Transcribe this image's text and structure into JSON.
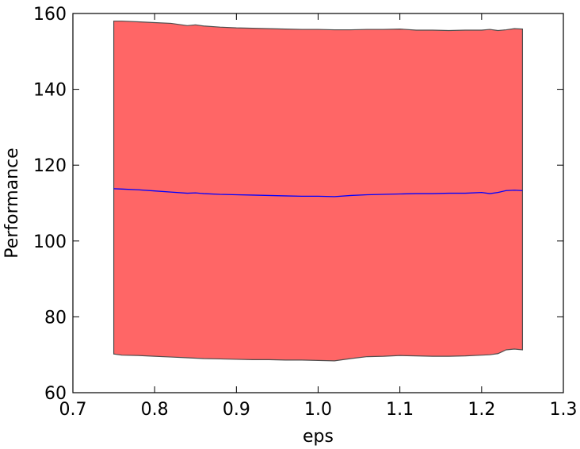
{
  "chart_data": {
    "type": "area",
    "xlabel": "eps",
    "ylabel": "Performance",
    "xlim": [
      0.7,
      1.3
    ],
    "ylim": [
      60,
      160
    ],
    "xticks": [
      "0.7",
      "0.8",
      "0.9",
      "1.0",
      "1.1",
      "1.2",
      "1.3"
    ],
    "yticks": [
      "60",
      "80",
      "100",
      "120",
      "140",
      "160"
    ],
    "grid": false,
    "legend": "none",
    "band_color": "#ff6666",
    "band_edge_color": "#4d4d4d",
    "line_color": "#0000ff",
    "x": [
      0.75,
      0.76,
      0.78,
      0.8,
      0.82,
      0.84,
      0.85,
      0.86,
      0.88,
      0.9,
      0.92,
      0.94,
      0.96,
      0.98,
      1.0,
      1.02,
      1.04,
      1.06,
      1.08,
      1.1,
      1.12,
      1.14,
      1.16,
      1.18,
      1.2,
      1.21,
      1.22,
      1.23,
      1.24,
      1.25
    ],
    "series": [
      {
        "role": "upper",
        "values": [
          158.0,
          158.0,
          157.8,
          157.6,
          157.4,
          156.8,
          157.0,
          156.7,
          156.4,
          156.2,
          156.1,
          156.0,
          155.9,
          155.8,
          155.8,
          155.7,
          155.7,
          155.8,
          155.8,
          155.9,
          155.6,
          155.6,
          155.5,
          155.6,
          155.6,
          155.8,
          155.5,
          155.7,
          156.0,
          155.9
        ]
      },
      {
        "role": "mean",
        "values": [
          113.8,
          113.7,
          113.5,
          113.2,
          112.9,
          112.6,
          112.7,
          112.5,
          112.3,
          112.2,
          112.1,
          112.0,
          111.9,
          111.8,
          111.8,
          111.7,
          112.0,
          112.2,
          112.3,
          112.4,
          112.5,
          112.5,
          112.6,
          112.6,
          112.8,
          112.5,
          112.8,
          113.3,
          113.4,
          113.3
        ]
      },
      {
        "role": "lower",
        "values": [
          70.2,
          69.9,
          69.8,
          69.6,
          69.4,
          69.2,
          69.1,
          69.0,
          68.9,
          68.8,
          68.7,
          68.7,
          68.6,
          68.6,
          68.5,
          68.4,
          69.0,
          69.5,
          69.6,
          69.8,
          69.7,
          69.6,
          69.6,
          69.7,
          69.9,
          70.0,
          70.3,
          71.3,
          71.5,
          71.3
        ]
      }
    ]
  }
}
